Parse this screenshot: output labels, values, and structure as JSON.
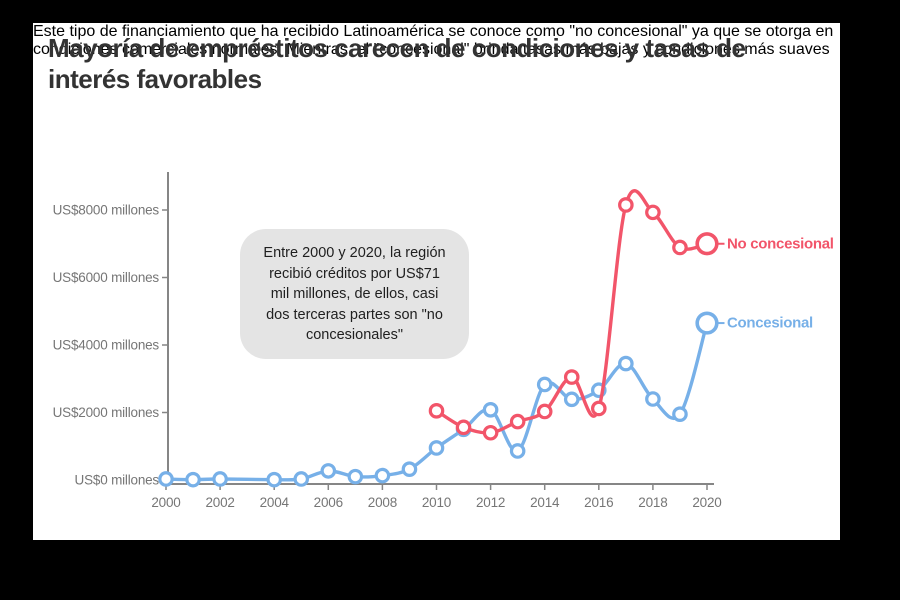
{
  "page": {
    "title": "Mayoría de empréstitos carecen de condiciones y tasas de interés favorables",
    "title_lines": [
      "Mayoría de empréstitos carecen de condiciones y tasas de",
      "interés favorables"
    ],
    "subtitle_lines": [
      "Este tipo de financiamiento que ha recibido Latinoamérica se conoce como \"no concesional\" ya que se otorga en",
      "condiciones comerciales normales. Mientras, el \"concesional\" brinda tasas más bajas y condiciones más suaves"
    ]
  },
  "annotation": {
    "text": "Entre 2000 y 2020, la región recibió créditos por US$71 mil millones, de ellos, casi dos terceras partes son \"no concesionales\"",
    "lines": [
      "Entre 2000 y 2020, la región",
      "recibió créditos por US$71",
      "mil millones, de ellos, casi",
      "dos terceras partes son \"no",
      "concesionales\""
    ]
  },
  "colors": {
    "background": "#000000",
    "card": "#ffffff",
    "no_concesional": "#f2556a",
    "concesional": "#77b0e8",
    "axis": "#868686",
    "tick_text": "#767676",
    "annotation_bg": "#e4e4e4",
    "title_text": "#333333"
  },
  "chart_data": {
    "type": "line",
    "x": [
      2000,
      2001,
      2002,
      2003,
      2004,
      2005,
      2006,
      2007,
      2008,
      2009,
      2010,
      2011,
      2012,
      2013,
      2014,
      2015,
      2016,
      2017,
      2018,
      2019,
      2020
    ],
    "series": [
      {
        "name": "No concesional",
        "color": "#f2556a",
        "values": [
          null,
          null,
          null,
          null,
          null,
          null,
          null,
          null,
          null,
          null,
          2050,
          1560,
          1400,
          1730,
          2030,
          3050,
          2120,
          8150,
          7930,
          6890,
          7000
        ]
      },
      {
        "name": "Concesional",
        "color": "#77b0e8",
        "values": [
          30,
          10,
          30,
          null,
          10,
          30,
          270,
          100,
          130,
          320,
          950,
          1500,
          2080,
          860,
          2830,
          2390,
          2660,
          3450,
          2400,
          1950,
          4650
        ]
      }
    ],
    "title": "Mayoría de empréstitos carecen de condiciones y tasas de interés favorables",
    "xlabel": "",
    "ylabel": "US$ millones",
    "xlim": [
      2000,
      2020
    ],
    "ylim": [
      0,
      9000
    ],
    "grid": false,
    "curve": "smooth",
    "legend_position": "right-of-last-point",
    "xticks": [
      2000,
      2002,
      2004,
      2006,
      2008,
      2010,
      2012,
      2014,
      2016,
      2018,
      2020
    ],
    "yticks": [
      0,
      2000,
      4000,
      6000,
      8000
    ],
    "ytick_labels": [
      "US$0 millones",
      "US$2000 millones",
      "US$4000 millones",
      "US$6000 millones",
      "US$8000 millones"
    ]
  }
}
